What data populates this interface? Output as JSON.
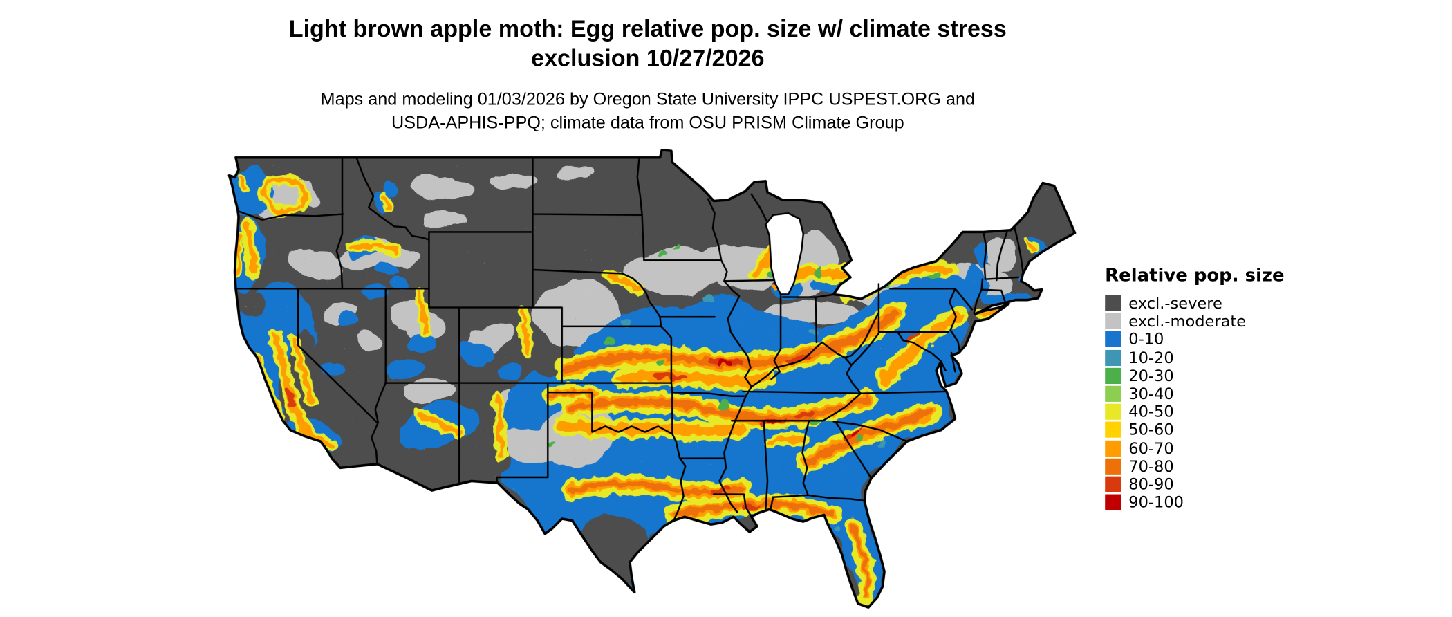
{
  "title": {
    "line1": "Light brown apple moth: Egg relative pop. size w/ climate stress",
    "line2": "exclusion 10/27/2026"
  },
  "subtitle": {
    "line1": "Maps and modeling 01/03/2026 by Oregon State University IPPC USPEST.ORG and",
    "line2": "USDA-APHIS-PPQ; climate data from OSU PRISM Climate Group"
  },
  "map": {
    "border_color": "#000000",
    "background_color": "#ffffff"
  },
  "legend": {
    "title": "Relative pop. size",
    "entries": [
      {
        "label": "excl.-severe",
        "color": "#4d4d4d"
      },
      {
        "label": "excl.-moderate",
        "color": "#c3c3c3"
      },
      {
        "label": "0-10",
        "color": "#1874cd"
      },
      {
        "label": "10-20",
        "color": "#3e96b4"
      },
      {
        "label": "20-30",
        "color": "#4daf4a"
      },
      {
        "label": "30-40",
        "color": "#8bce50"
      },
      {
        "label": "40-50",
        "color": "#e8e926"
      },
      {
        "label": "50-60",
        "color": "#ffd200"
      },
      {
        "label": "60-70",
        "color": "#ff9d00"
      },
      {
        "label": "70-80",
        "color": "#ee7008"
      },
      {
        "label": "80-90",
        "color": "#d93a0d"
      },
      {
        "label": "90-100",
        "color": "#c00000"
      }
    ]
  }
}
